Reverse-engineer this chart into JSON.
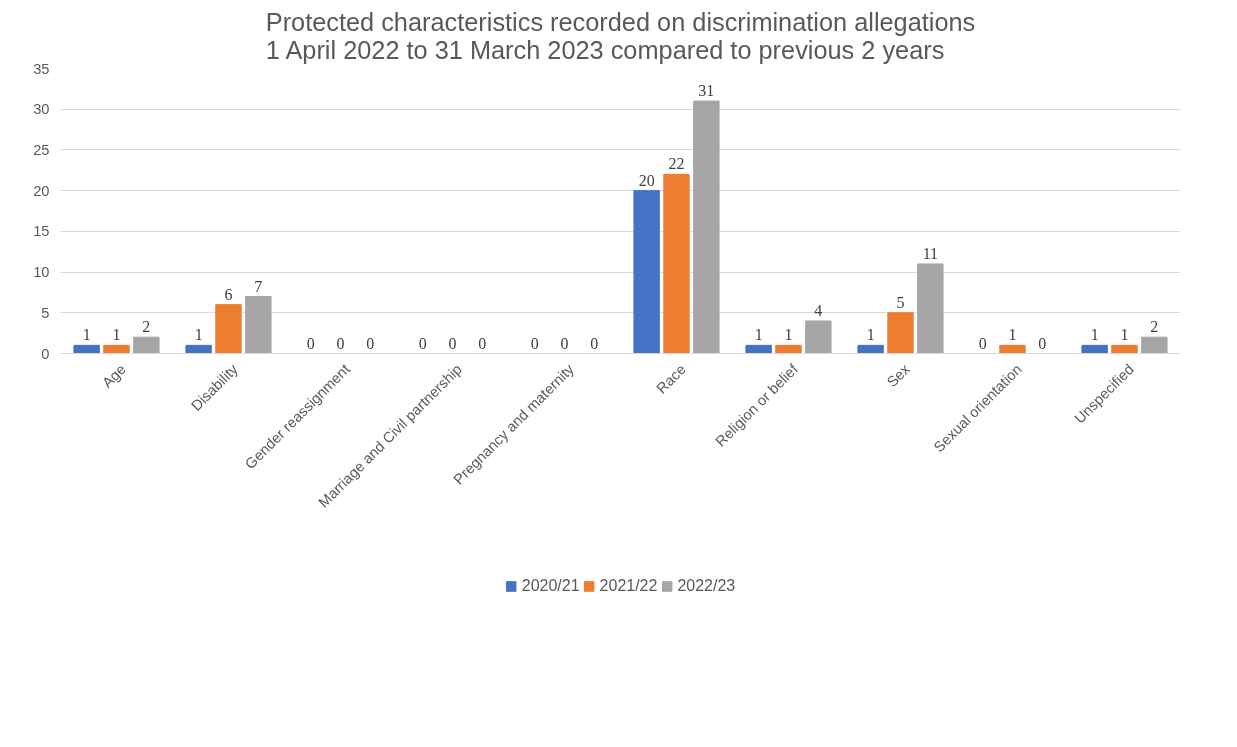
{
  "chart_data": {
    "type": "bar",
    "title": "Protected characteristics recorded on discrimination allegations\n1 April 2022 to 31 March 2023 compared to previous 2 years",
    "categories": [
      "Age",
      "Disability",
      "Gender reassignment",
      "Marriage and Civil partnership",
      "Pregnancy and maternity",
      "Race",
      "Religion or belief",
      "Sex",
      "Sexual orientation",
      "Unspecified"
    ],
    "series": [
      {
        "name": "2020/21",
        "color": "#4472c4",
        "values": [
          1,
          1,
          0,
          0,
          0,
          20,
          1,
          1,
          0,
          1
        ]
      },
      {
        "name": "2021/22",
        "color": "#ed7d31",
        "values": [
          1,
          6,
          0,
          0,
          0,
          22,
          1,
          5,
          1,
          1
        ]
      },
      {
        "name": "2022/23",
        "color": "#a5a5a5",
        "values": [
          2,
          7,
          0,
          0,
          0,
          31,
          4,
          11,
          0,
          2
        ]
      }
    ],
    "ylim": [
      0,
      35
    ],
    "yticks": [
      0,
      5,
      10,
      15,
      20,
      25,
      30,
      35
    ],
    "grid": "y",
    "legend": "bottom",
    "data_labels": true
  }
}
